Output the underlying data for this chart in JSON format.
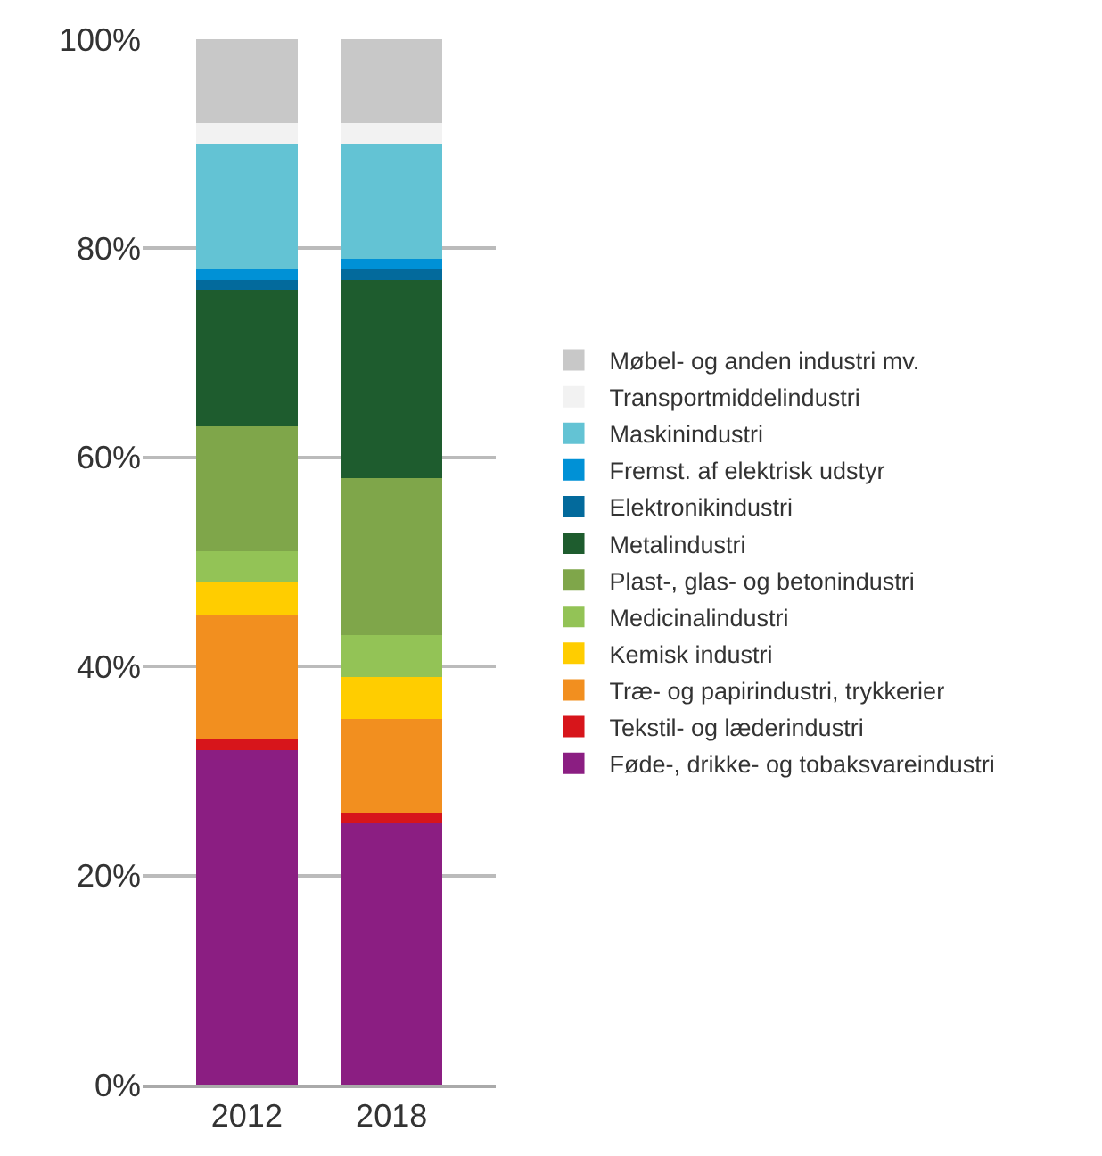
{
  "chart_data": {
    "type": "bar",
    "stacked": true,
    "categories": [
      "2012",
      "2018"
    ],
    "ylim": [
      0,
      100
    ],
    "yticks": [
      {
        "value": 0,
        "label": "0%"
      },
      {
        "value": 20,
        "label": "20%"
      },
      {
        "value": 40,
        "label": "40%"
      },
      {
        "value": 60,
        "label": "60%"
      },
      {
        "value": 80,
        "label": "80%"
      },
      {
        "value": 100,
        "label": "100%"
      }
    ],
    "grid": "y",
    "legend": "right",
    "series": [
      {
        "name": "Føde-, drikke- og tobaksvareindustri",
        "color": "#8b1e82",
        "values": [
          32,
          25
        ]
      },
      {
        "name": "Tekstil- og læderindustri",
        "color": "#d7151b",
        "values": [
          1,
          1
        ]
      },
      {
        "name": "Træ- og papirindustri, trykkerier",
        "color": "#f28f1f",
        "values": [
          12,
          9
        ]
      },
      {
        "name": "Kemisk industri",
        "color": "#ffcd00",
        "values": [
          3,
          4
        ]
      },
      {
        "name": "Medicinalindustri",
        "color": "#93c356",
        "values": [
          3,
          4
        ]
      },
      {
        "name": "Plast-, glas- og betonindustri",
        "color": "#7fa64a",
        "values": [
          12,
          15
        ]
      },
      {
        "name": "Metalindustri",
        "color": "#1e5c2e",
        "values": [
          13,
          19
        ]
      },
      {
        "name": "Elektronikindustri",
        "color": "#036a9c",
        "values": [
          1,
          1
        ]
      },
      {
        "name": "Fremst. af elektrisk udstyr",
        "color": "#0091d6",
        "values": [
          1,
          1
        ]
      },
      {
        "name": "Maskinindustri",
        "color": "#63c3d4",
        "values": [
          12,
          11
        ]
      },
      {
        "name": "Transportmiddelindustri",
        "color": "#f2f2f2",
        "values": [
          2,
          2
        ]
      },
      {
        "name": "Møbel- og anden industri mv.",
        "color": "#c8c8c8",
        "values": [
          8,
          8
        ]
      }
    ]
  }
}
